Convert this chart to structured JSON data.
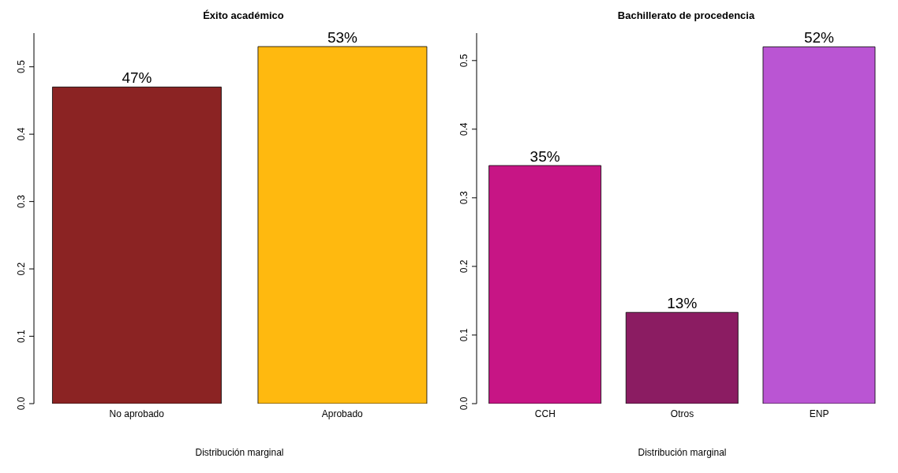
{
  "chart_data": [
    {
      "type": "bar",
      "title": "Éxito académico",
      "xlabel": "Distribución marginal",
      "categories": [
        "No aprobado",
        "Aprobado"
      ],
      "values": [
        0.47,
        0.53
      ],
      "colors": [
        "#8b2323",
        "#ffb90f"
      ],
      "value_labels": [
        "47%",
        "53%"
      ],
      "ylim": [
        0,
        0.55
      ],
      "yticks": [
        {
          "value": 0,
          "label": "0.0"
        },
        0.1,
        0.2,
        0.3,
        0.4,
        0.5
      ],
      "grid": false,
      "legend": false
    },
    {
      "type": "bar",
      "title": "Bachillerato de procedencia",
      "xlabel": "Distribución marginal",
      "categories": [
        "CCH",
        "Otros",
        "ENP"
      ],
      "values": [
        0.347,
        0.133,
        0.52
      ],
      "colors": [
        "#c71585",
        "#8b1c62",
        "#ba55d3"
      ],
      "value_labels": [
        "35%",
        "13%",
        "52%"
      ],
      "ylim": [
        0,
        0.54
      ],
      "yticks": [
        {
          "value": 0,
          "label": "0.0"
        },
        0.1,
        0.2,
        0.3,
        0.4,
        0.5
      ],
      "grid": false,
      "legend": false
    }
  ]
}
